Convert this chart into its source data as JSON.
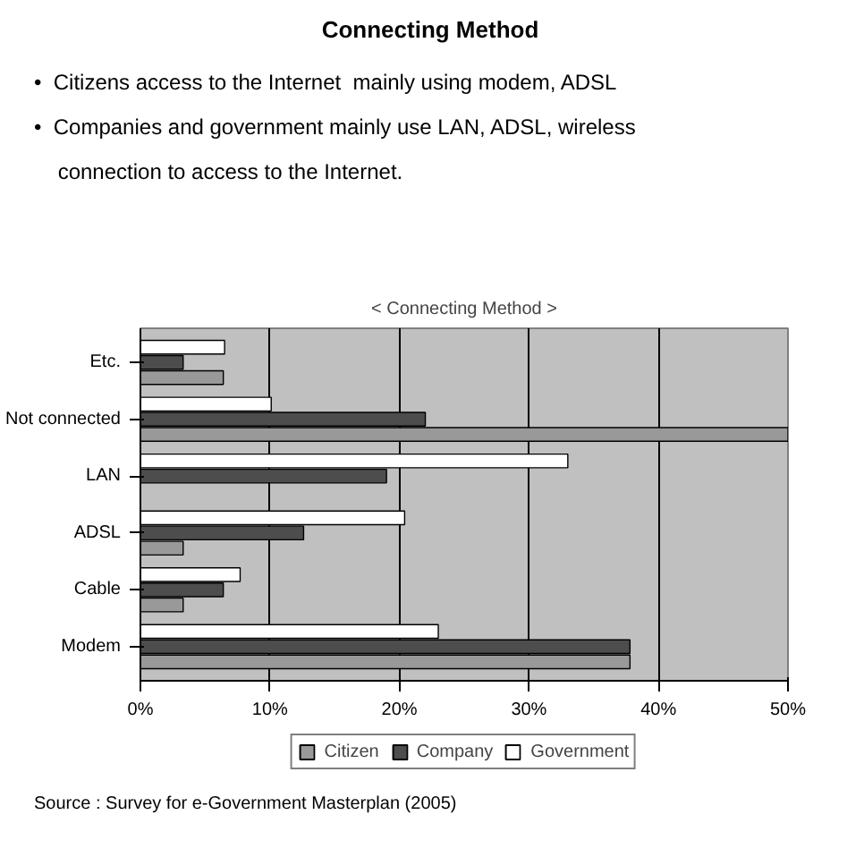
{
  "chart_data": {
    "type": "bar",
    "orientation": "horizontal",
    "title": "Connecting Method",
    "subtitle": "< Connecting Method >",
    "annotations": [
      "•  Citizens access to the Internet  mainly using modem, ADSL",
      "•  Companies and government mainly use LAN, ADSL, wireless",
      "    connection to access to the Internet.",
      "Source : Survey for e-Government Masterplan  (2005)"
    ],
    "categories": [
      "Etc.",
      "Not connected",
      "LAN",
      "ADSL",
      "Cable",
      "Modem"
    ],
    "series": [
      {
        "name": "Citizen",
        "color": "#999999",
        "values": [
          6.4,
          50,
          null,
          3.3,
          3.3,
          37.8
        ]
      },
      {
        "name": "Company",
        "color": "#4d4d4d",
        "values": [
          3.3,
          22,
          19,
          12.6,
          6.4,
          37.8
        ]
      },
      {
        "name": "Government",
        "color": "#ffffff",
        "values": [
          6.5,
          10.1,
          33,
          20.4,
          7.7,
          23
        ]
      }
    ],
    "xlim": [
      0,
      50
    ],
    "xticks": [
      {
        "value": 0,
        "label": "0%"
      },
      {
        "value": 10,
        "label": "10%"
      },
      {
        "value": 20,
        "label": "20%"
      },
      {
        "value": 30,
        "label": "30%"
      },
      {
        "value": 40,
        "label": "40%"
      },
      {
        "value": 50,
        "label": "50%"
      }
    ],
    "grid": "x",
    "legend": "bottom"
  }
}
